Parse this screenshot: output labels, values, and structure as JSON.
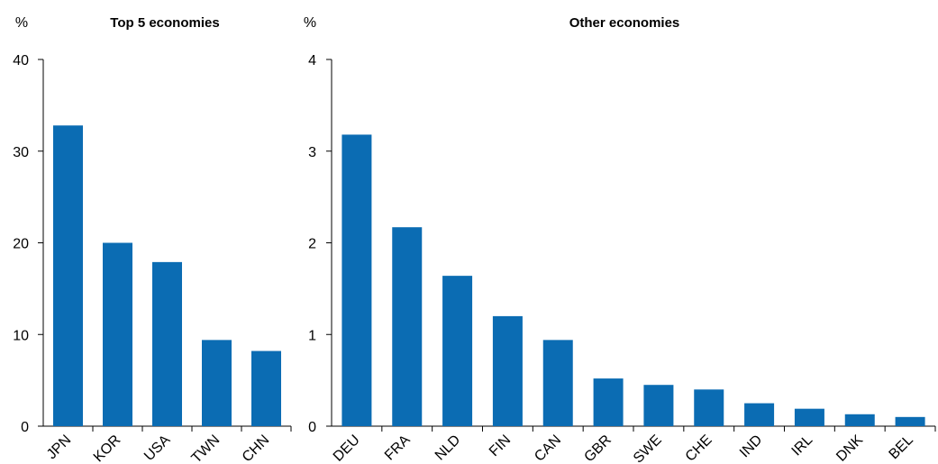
{
  "chart_data": [
    {
      "type": "bar",
      "title": "Top 5 economies",
      "unit": "%",
      "categories": [
        "JPN",
        "KOR",
        "USA",
        "TWN",
        "CHN"
      ],
      "values": [
        32.8,
        20.0,
        17.9,
        9.4,
        8.2
      ],
      "yticks": [
        0,
        10,
        20,
        30,
        40
      ],
      "ylim": [
        0,
        40
      ],
      "grid": false,
      "color": "#0b6cb3"
    },
    {
      "type": "bar",
      "title": "Other economies",
      "unit": "%",
      "categories": [
        "DEU",
        "FRA",
        "NLD",
        "FIN",
        "CAN",
        "GBR",
        "SWE",
        "CHE",
        "IND",
        "IRL",
        "DNK",
        "BEL"
      ],
      "values": [
        3.18,
        2.17,
        1.64,
        1.2,
        0.94,
        0.52,
        0.45,
        0.4,
        0.25,
        0.19,
        0.13,
        0.1
      ],
      "yticks": [
        0,
        1,
        2,
        3,
        4
      ],
      "ylim": [
        0,
        4
      ],
      "grid": false,
      "color": "#0b6cb3"
    }
  ]
}
